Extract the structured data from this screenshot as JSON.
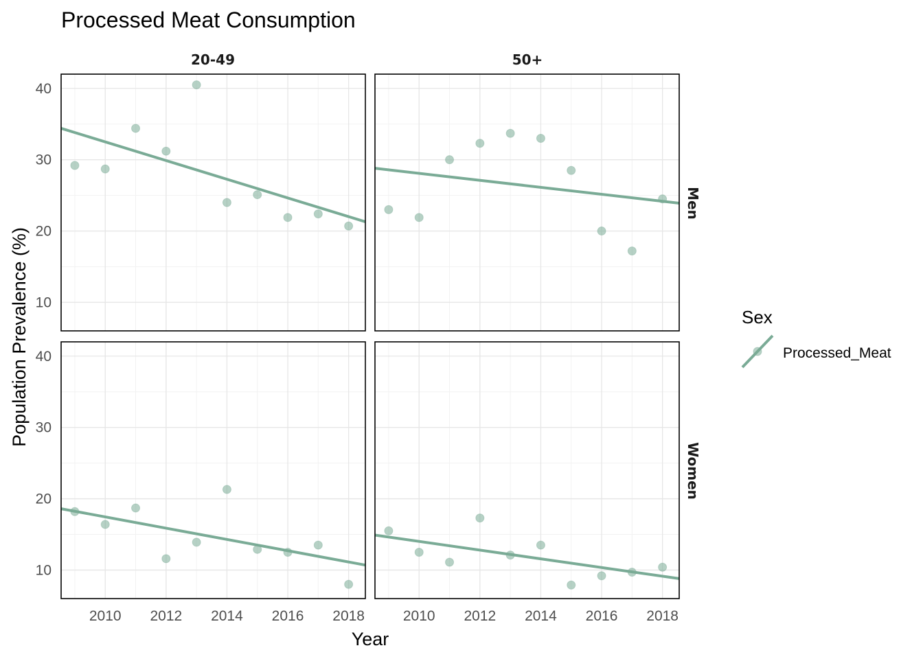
{
  "chart_data": {
    "type": "scatter",
    "title": "Processed Meat Consumption",
    "xlabel": "Year",
    "ylabel": "Population Prevalence (%)",
    "xlim": [
      2008.55,
      2018.55
    ],
    "ylim": [
      6,
      42
    ],
    "x_ticks": [
      2010,
      2012,
      2014,
      2016,
      2018
    ],
    "y_ticks": [
      10,
      20,
      30,
      40
    ],
    "grid": true,
    "legend": {
      "title": "Sex",
      "position": "right",
      "entries": [
        "Processed_Meat"
      ]
    },
    "color": "#7aab96",
    "facet_columns": [
      "20-49",
      "50+"
    ],
    "facet_rows": [
      "Men",
      "Women"
    ],
    "panels": [
      {
        "col": "20-49",
        "row": "Men",
        "x": [
          2009,
          2010,
          2011,
          2012,
          2013,
          2014,
          2015,
          2016,
          2017,
          2018
        ],
        "y": [
          29.2,
          28.7,
          34.4,
          31.2,
          40.5,
          24.0,
          25.1,
          21.9,
          22.4,
          20.7
        ],
        "trend": {
          "x": [
            2008.55,
            2018.55
          ],
          "y": [
            34.4,
            21.3
          ]
        }
      },
      {
        "col": "50+",
        "row": "Men",
        "x": [
          2009,
          2010,
          2011,
          2012,
          2013,
          2014,
          2015,
          2016,
          2017,
          2018
        ],
        "y": [
          23.0,
          21.9,
          30.0,
          32.3,
          33.7,
          33.0,
          28.5,
          20.0,
          17.2,
          24.5
        ],
        "trend": {
          "x": [
            2008.55,
            2018.55
          ],
          "y": [
            28.8,
            23.9
          ]
        }
      },
      {
        "col": "20-49",
        "row": "Women",
        "x": [
          2009,
          2010,
          2011,
          2012,
          2013,
          2014,
          2015,
          2016,
          2017,
          2018
        ],
        "y": [
          18.2,
          16.4,
          18.7,
          11.6,
          13.9,
          21.3,
          12.9,
          12.5,
          13.5,
          8.0
        ],
        "trend": {
          "x": [
            2008.55,
            2018.55
          ],
          "y": [
            18.6,
            10.7
          ]
        }
      },
      {
        "col": "50+",
        "row": "Women",
        "x": [
          2009,
          2010,
          2011,
          2012,
          2013,
          2014,
          2015,
          2016,
          2017,
          2018
        ],
        "y": [
          15.5,
          12.5,
          11.1,
          17.3,
          12.1,
          13.5,
          7.9,
          9.2,
          9.7,
          10.4
        ],
        "trend": {
          "x": [
            2008.55,
            2018.55
          ],
          "y": [
            14.9,
            8.8
          ]
        }
      }
    ]
  }
}
